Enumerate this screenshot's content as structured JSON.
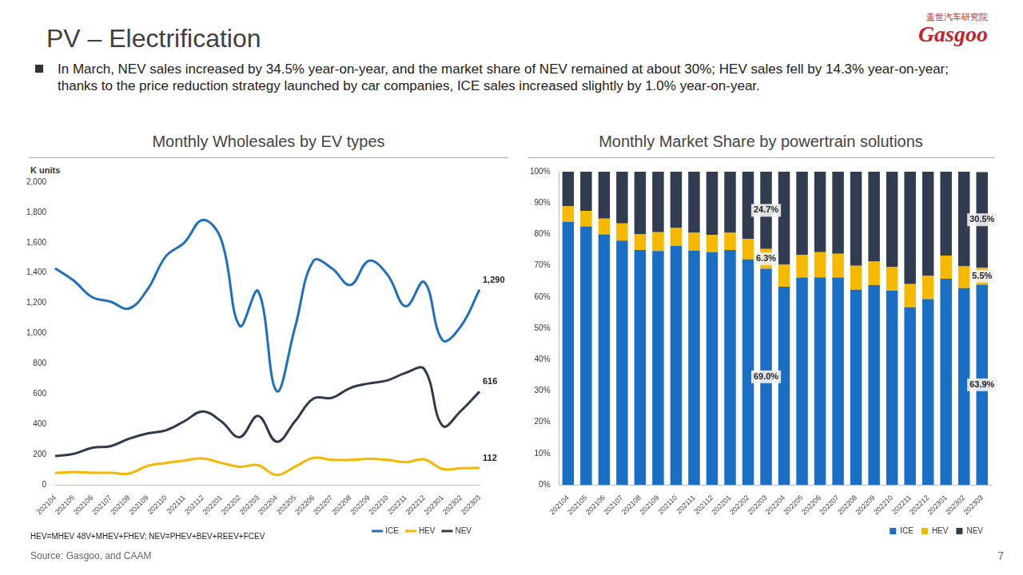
{
  "page": {
    "title": "PV – Electrification",
    "logo_text": "盖世汽车研究院",
    "logo_brand": "Gasgoo",
    "bullet": "In March, NEV sales increased by 34.5% year-on-year, and the market share of NEV remained at about 30%; HEV sales fell by 14.3% year-on-year; thanks to the price reduction strategy launched by car companies, ICE sales increased slightly by 1.0% year-on-year.",
    "footnote": "HEV=MHEV 48V+MHEV+FHEV; NEV=PHEV+BEV+REEV+FCEV",
    "source": "Source: Gasgoo, and CAAM",
    "page_number": "7"
  },
  "chart_data": [
    {
      "type": "line",
      "title": "Monthly Wholesales by EV types",
      "ylabel": "K units",
      "categories": [
        "202104",
        "202105",
        "202106",
        "202107",
        "202108",
        "202109",
        "202110",
        "202111",
        "202112",
        "202201",
        "202202",
        "202203",
        "202204",
        "202205",
        "202206",
        "202207",
        "202208",
        "202209",
        "202210",
        "202211",
        "202212",
        "202301",
        "202302",
        "202303"
      ],
      "series": [
        {
          "name": "ICE",
          "color": "#1f6fc0",
          "values": [
            1430,
            1350,
            1240,
            1210,
            1165,
            1290,
            1510,
            1600,
            1750,
            1620,
            1050,
            1280,
            620,
            1040,
            1480,
            1430,
            1320,
            1480,
            1390,
            1180,
            1340,
            955,
            1050,
            1290
          ],
          "value_labels": [
            null,
            null,
            null,
            null,
            null,
            null,
            null,
            null,
            null,
            null,
            null,
            null,
            null,
            null,
            null,
            null,
            null,
            null,
            null,
            null,
            null,
            null,
            null,
            "1,290"
          ]
        },
        {
          "name": "HEV",
          "color": "#f5b800",
          "values": [
            78,
            85,
            80,
            80,
            75,
            125,
            145,
            160,
            175,
            145,
            120,
            130,
            65,
            120,
            178,
            165,
            165,
            172,
            165,
            150,
            168,
            105,
            110,
            112
          ],
          "value_labels": [
            null,
            null,
            null,
            null,
            null,
            null,
            null,
            null,
            null,
            null,
            null,
            null,
            null,
            null,
            null,
            null,
            null,
            null,
            null,
            null,
            null,
            null,
            null,
            "112"
          ]
        },
        {
          "name": "NEV",
          "color": "#2f3a4d",
          "values": [
            190,
            205,
            245,
            255,
            305,
            340,
            360,
            420,
            485,
            420,
            315,
            455,
            285,
            420,
            570,
            575,
            640,
            670,
            690,
            740,
            765,
            390,
            490,
            616
          ],
          "value_labels": [
            null,
            null,
            null,
            null,
            null,
            null,
            null,
            null,
            null,
            null,
            null,
            null,
            null,
            null,
            null,
            null,
            null,
            null,
            null,
            null,
            null,
            null,
            null,
            "616"
          ]
        }
      ],
      "ylim": [
        0,
        2000
      ],
      "yticks": [
        0,
        200,
        400,
        600,
        800,
        {
          "value": 1000,
          "label": "1,000"
        },
        {
          "value": 1200,
          "label": "1,200"
        },
        {
          "value": 1400,
          "label": "1,400"
        },
        {
          "value": 1600,
          "label": "1,600"
        },
        {
          "value": 1800,
          "label": "1,800"
        },
        {
          "value": 2000,
          "label": "2,000"
        }
      ],
      "grid": false,
      "legend": "bottom",
      "data_labels": true
    },
    {
      "type": "bar",
      "title": "Monthly Market Share by powertrain solutions",
      "categories": [
        "202104",
        "202105",
        "202106",
        "202107",
        "202108",
        "202109",
        "202110",
        "202111",
        "202112",
        "202201",
        "202202",
        "202203",
        "202204",
        "202205",
        "202206",
        "202207",
        "202208",
        "202209",
        "202210",
        "202211",
        "202212",
        "202301",
        "202302",
        "202303"
      ],
      "series": [
        {
          "name": "ICE",
          "color": "#1a6fc4",
          "values": [
            84,
            82.5,
            80,
            78,
            75,
            74.7,
            76.3,
            74.8,
            74.3,
            75,
            72,
            69.0,
            63.3,
            66.2,
            66.3,
            66.2,
            62.3,
            63.8,
            62,
            56.7,
            59.3,
            65.8,
            62.8,
            63.9
          ],
          "value_labels": [
            null,
            null,
            null,
            null,
            null,
            null,
            null,
            null,
            null,
            null,
            null,
            "69.0%",
            null,
            null,
            null,
            null,
            null,
            null,
            null,
            null,
            null,
            null,
            null,
            "63.9%"
          ]
        },
        {
          "name": "HEV",
          "color": "#f5b900",
          "values": [
            5,
            5,
            5,
            5.5,
            5,
            6,
            5.7,
            5.7,
            5.5,
            5.5,
            6.5,
            6.3,
            7,
            7.3,
            8,
            7.6,
            7.7,
            7.5,
            7.5,
            7.4,
            7.4,
            7.4,
            7,
            5.5
          ],
          "value_labels": [
            null,
            null,
            null,
            null,
            null,
            null,
            null,
            null,
            null,
            null,
            null,
            "6.3%",
            null,
            null,
            null,
            null,
            null,
            null,
            null,
            null,
            null,
            null,
            null,
            "5.5%"
          ]
        },
        {
          "name": "NEV",
          "color": "#323c50",
          "values": [
            11,
            12.5,
            15,
            16.5,
            20,
            19.3,
            18,
            19.5,
            20.2,
            19.5,
            21.5,
            24.7,
            29.7,
            26.5,
            25.7,
            26.2,
            30,
            28.7,
            30.5,
            35.9,
            33.3,
            26.8,
            30.2,
            30.5
          ],
          "value_labels": [
            null,
            null,
            null,
            null,
            null,
            null,
            null,
            null,
            null,
            null,
            null,
            "24.7%",
            null,
            null,
            null,
            null,
            null,
            null,
            null,
            null,
            null,
            null,
            null,
            "30.5%"
          ]
        }
      ],
      "ylim": [
        0,
        100
      ],
      "yticks": [
        {
          "value": 0,
          "label": "0%"
        },
        {
          "value": 10,
          "label": "10%"
        },
        {
          "value": 20,
          "label": "20%"
        },
        {
          "value": 30,
          "label": "30%"
        },
        {
          "value": 40,
          "label": "40%"
        },
        {
          "value": 50,
          "label": "50%"
        },
        {
          "value": 60,
          "label": "60%"
        },
        {
          "value": 70,
          "label": "70%"
        },
        {
          "value": 80,
          "label": "80%"
        },
        {
          "value": 90,
          "label": "90%"
        },
        {
          "value": 100,
          "label": "100%"
        }
      ],
      "stacked": true,
      "grid": false,
      "legend": "bottom",
      "data_labels": true
    }
  ]
}
